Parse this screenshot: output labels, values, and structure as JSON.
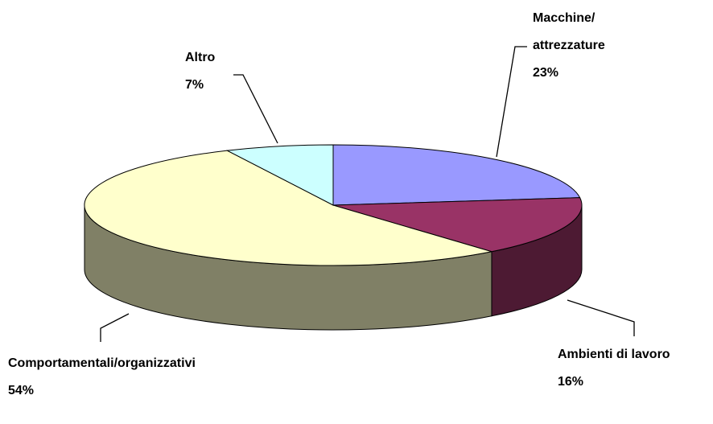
{
  "chart_data": {
    "type": "pie3d",
    "categories": [
      "Macchine/ attrezzature",
      "Ambienti di lavoro",
      "Comportamentali/organizzativi",
      "Altro"
    ],
    "values": [
      23,
      16,
      54,
      7
    ],
    "value_labels": [
      "23%",
      "16%",
      "54%",
      "7%"
    ],
    "colors": [
      "#9999ff",
      "#993366",
      "#ffffcc",
      "#ccffff"
    ]
  }
}
